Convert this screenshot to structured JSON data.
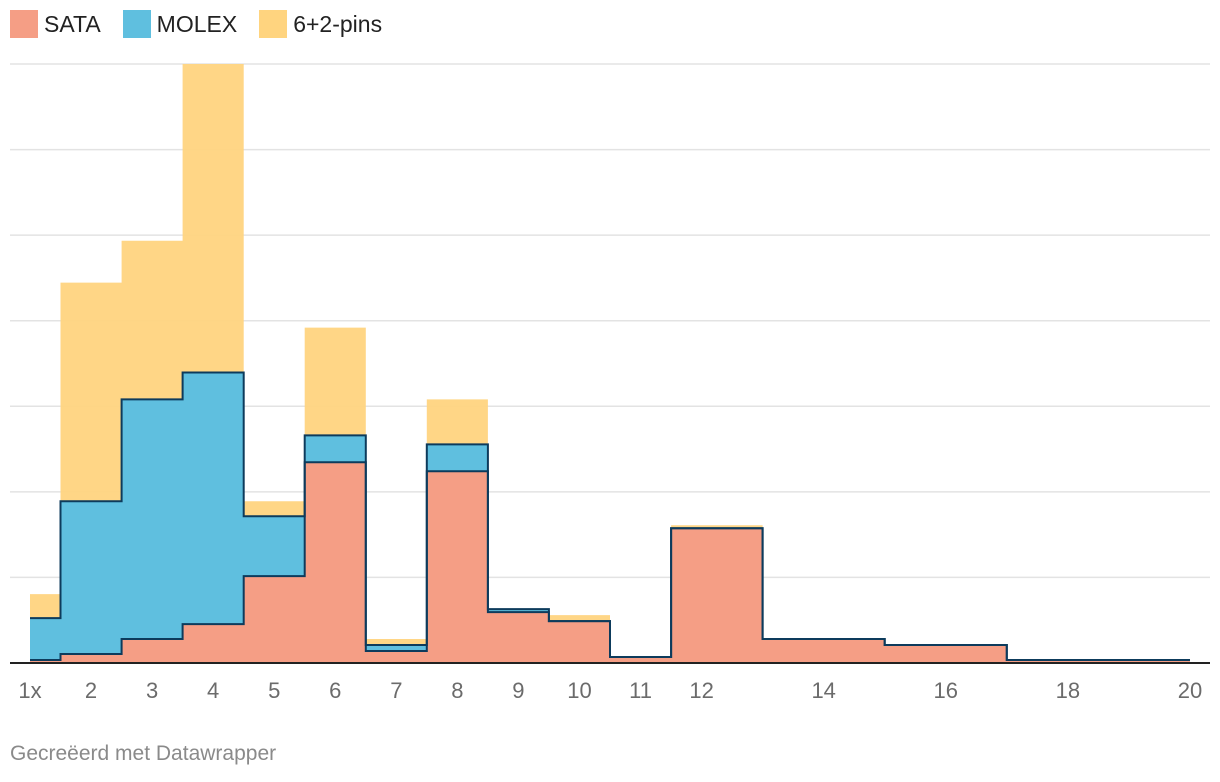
{
  "chart_data": {
    "type": "area",
    "step": true,
    "xlim": [
      1,
      20
    ],
    "ylim": [
      0,
      1.15
    ],
    "grid": true,
    "legend_position": "top-left",
    "x_ticks": [
      {
        "value": 1,
        "label": "1x"
      },
      {
        "value": 2,
        "label": "2"
      },
      {
        "value": 3,
        "label": "3"
      },
      {
        "value": 4,
        "label": "4"
      },
      {
        "value": 5,
        "label": "5"
      },
      {
        "value": 6,
        "label": "6"
      },
      {
        "value": 7,
        "label": "7"
      },
      {
        "value": 8,
        "label": "8"
      },
      {
        "value": 9,
        "label": "9"
      },
      {
        "value": 10,
        "label": "10"
      },
      {
        "value": 11,
        "label": "11"
      },
      {
        "value": 12,
        "label": "12"
      },
      {
        "value": 14,
        "label": "14"
      },
      {
        "value": 16,
        "label": "16"
      },
      {
        "value": 18,
        "label": "18"
      },
      {
        "value": 20,
        "label": "20"
      }
    ],
    "x_edges": [
      1,
      1.5,
      2.5,
      3.5,
      4.5,
      5.5,
      6.5,
      7.5,
      8.5,
      9.5,
      10.5,
      11.5,
      13,
      15,
      17,
      20
    ],
    "series": [
      {
        "name": "SATA",
        "color": "#f59e85",
        "values": [
          0.005,
          0.015,
          0.04,
          0.065,
          0.145,
          0.335,
          0.02,
          0.32,
          0.085,
          0.07,
          0.01,
          0.225,
          0.04,
          0.03,
          0.005
        ]
      },
      {
        "name": "MOLEX",
        "color": "#5fbfdf",
        "values": [
          0.075,
          0.27,
          0.44,
          0.485,
          0.245,
          0.38,
          0.03,
          0.365,
          0.09,
          0.07,
          0.01,
          0.225,
          0.04,
          0.03,
          0.005
        ]
      },
      {
        "name": "6+2-pins",
        "color": "#ffd47f",
        "values": [
          0.115,
          0.635,
          0.705,
          1.0,
          0.27,
          0.56,
          0.04,
          0.44,
          0.09,
          0.08,
          0.01,
          0.23,
          0.04,
          0.03,
          0.005
        ]
      }
    ]
  },
  "footer": {
    "credit": "Gecreëerd met Datawrapper"
  }
}
